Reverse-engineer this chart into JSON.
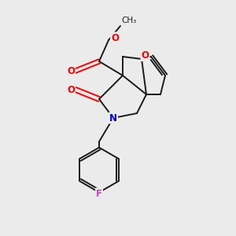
{
  "background_color": "#ebebeb",
  "bond_color": "#1a1a1a",
  "bond_lw": 1.4,
  "atom_colors": {
    "O": "#ff0000",
    "N": "#0000cc",
    "F": "#cc44cc"
  },
  "figsize": [
    3.0,
    3.0
  ],
  "dpi": 100,
  "xlim": [
    0,
    10
  ],
  "ylim": [
    0,
    10
  ]
}
